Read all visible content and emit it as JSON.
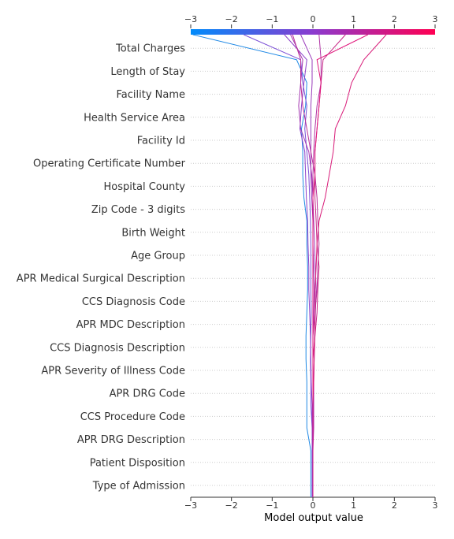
{
  "chart_data": {
    "type": "decision_plot",
    "xlabel": "Model output value",
    "xlim": [
      -3,
      3
    ],
    "ticks": [
      -3,
      -2,
      -1,
      0,
      1,
      2,
      3
    ],
    "tick_labels": [
      "−3",
      "−2",
      "−1",
      "0",
      "1",
      "2",
      "3"
    ],
    "features": [
      "Type of Admission",
      "Patient Disposition",
      "APR DRG Description",
      "CCS Procedure Code",
      "APR DRG Code",
      "APR Severity of Illness Code",
      "CCS Diagnosis Description",
      "APR MDC Description",
      "CCS Diagnosis Code",
      "APR Medical Surgical Description",
      "Age Group",
      "Birth Weight",
      "Zip Code - 3 digits",
      "Hospital County",
      "Operating Certificate Number",
      "Facility Id",
      "Health Service Area",
      "Facility Name",
      "Length of Stay",
      "Total Charges"
    ],
    "grid": "dotted",
    "colorbar": {
      "position": "top",
      "colors": [
        "#008bfb",
        "#ff0052"
      ],
      "range": [
        -3,
        3
      ]
    },
    "series": [
      {
        "color": "#1e88e5",
        "values": [
          -0.05,
          -0.05,
          -0.05,
          -0.15,
          -0.15,
          -0.15,
          -0.17,
          -0.17,
          -0.15,
          -0.13,
          -0.13,
          -0.15,
          -0.15,
          -0.22,
          -0.25,
          -0.25,
          -0.28,
          -0.18,
          -0.15,
          -0.4,
          -2.95
        ]
      },
      {
        "color": "#7b4fd6",
        "values": [
          -0.02,
          -0.02,
          -0.02,
          -0.02,
          -0.05,
          -0.05,
          -0.06,
          -0.05,
          -0.04,
          -0.05,
          -0.05,
          -0.05,
          -0.06,
          -0.08,
          -0.1,
          -0.15,
          -0.2,
          -0.15,
          -0.25,
          -0.3,
          -1.7
        ]
      },
      {
        "color": "#8d3fc8",
        "values": [
          0.0,
          0.0,
          0.0,
          -0.02,
          -0.02,
          -0.04,
          -0.05,
          -0.06,
          -0.08,
          -0.1,
          -0.1,
          -0.12,
          -0.13,
          -0.16,
          -0.18,
          -0.2,
          -0.32,
          -0.28,
          -0.22,
          -0.15,
          -0.7
        ]
      },
      {
        "color": "#9a3bbb",
        "values": [
          0.0,
          0.0,
          0.0,
          0.0,
          0.0,
          0.0,
          0.0,
          0.0,
          0.02,
          0.03,
          0.02,
          0.0,
          0.0,
          -0.03,
          -0.05,
          -0.05,
          -0.05,
          -0.05,
          -0.02,
          -0.02,
          -0.3
        ]
      },
      {
        "color": "#a436b1",
        "values": [
          0.0,
          0.0,
          0.0,
          0.02,
          0.02,
          0.02,
          0.03,
          0.04,
          0.06,
          0.08,
          0.06,
          0.04,
          0.02,
          0.0,
          -0.03,
          -0.1,
          -0.3,
          -0.35,
          -0.3,
          -0.25,
          -0.55
        ]
      },
      {
        "color": "#b032a3",
        "values": [
          0.0,
          0.0,
          0.0,
          0.0,
          0.0,
          0.0,
          0.0,
          0.0,
          0.0,
          0.0,
          0.0,
          0.0,
          0.0,
          0.0,
          0.0,
          0.02,
          0.05,
          0.1,
          0.2,
          0.2,
          0.15
        ]
      },
      {
        "color": "#ba2e97",
        "values": [
          0.0,
          0.0,
          0.0,
          0.0,
          0.0,
          0.0,
          0.0,
          0.0,
          0.05,
          0.1,
          0.12,
          0.15,
          0.12,
          0.1,
          0.05,
          -0.05,
          -0.15,
          -0.25,
          -0.3,
          -0.3,
          -0.5
        ]
      },
      {
        "color": "#c72886",
        "values": [
          0.0,
          0.0,
          0.0,
          0.0,
          0.0,
          0.0,
          0.0,
          0.05,
          0.1,
          0.12,
          0.15,
          0.1,
          0.08,
          0.05,
          0.05,
          0.05,
          0.1,
          0.15,
          0.2,
          0.25,
          0.8
        ]
      },
      {
        "color": "#d81a78",
        "values": [
          0.0,
          0.0,
          0.0,
          0.0,
          0.0,
          0.02,
          0.03,
          0.05,
          0.05,
          0.05,
          0.08,
          0.1,
          0.15,
          0.3,
          0.4,
          0.5,
          0.55,
          0.8,
          0.95,
          1.25,
          1.8
        ]
      },
      {
        "color": "#e0157a",
        "values": [
          0.0,
          0.0,
          0.0,
          0.0,
          0.0,
          0.0,
          0.0,
          0.0,
          0.0,
          0.0,
          0.0,
          0.0,
          0.0,
          0.0,
          0.05,
          0.05,
          0.1,
          0.15,
          0.2,
          0.1,
          1.35
        ]
      }
    ]
  }
}
